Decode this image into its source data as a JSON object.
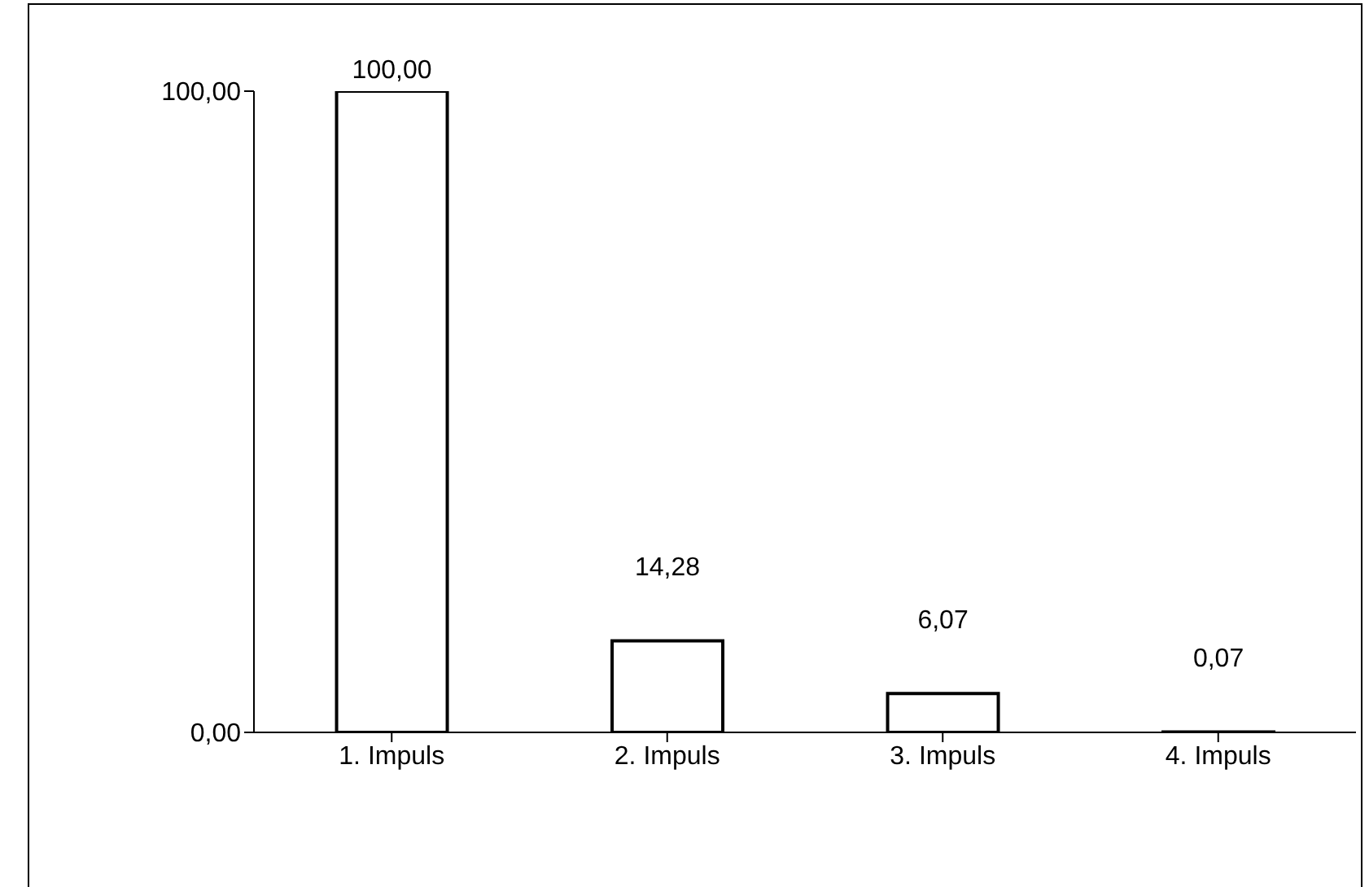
{
  "chart_data": {
    "type": "bar",
    "categories": [
      "1. Impuls",
      "2. Impuls",
      "3. Impuls",
      "4. Impuls"
    ],
    "values": [
      100,
      14.28,
      6.07,
      0.07
    ],
    "value_labels": [
      "100,00",
      "14,28",
      "6,07",
      "0,07"
    ],
    "color": "#ffffff",
    "ylim": [
      0,
      100
    ],
    "yticks": [
      {
        "value": 0,
        "label": "0,00"
      },
      {
        "value": 100,
        "label": "100,00"
      }
    ],
    "grid": false,
    "legend": false
  }
}
